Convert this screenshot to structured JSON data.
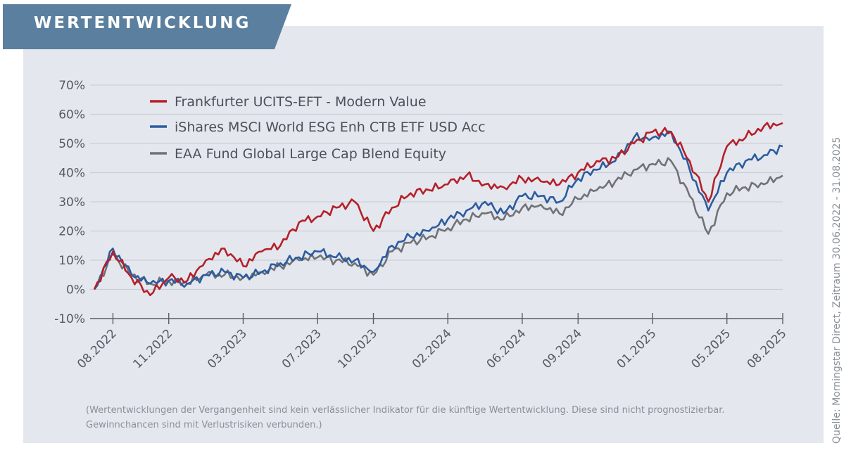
{
  "header": {
    "title": "WERTENTWICKLUNG",
    "banner_color": "#5b7f9e"
  },
  "chart_data": {
    "type": "line",
    "title": "",
    "xlabel": "",
    "ylabel": "",
    "ylim": [
      -10,
      70
    ],
    "yticks": [
      70,
      60,
      50,
      40,
      30,
      20,
      10,
      0,
      -10
    ],
    "ytick_labels": [
      "70%",
      "60%",
      "50%",
      "40%",
      "30%",
      "20%",
      "10%",
      "0%",
      "-10%"
    ],
    "xticks": [
      "08.2022",
      "11.2022",
      "03.2023",
      "07.2023",
      "10.2023",
      "02.2024",
      "06.2024",
      "09.2024",
      "01.2025",
      "05.2025",
      "08.2025"
    ],
    "grid": true,
    "legend_position": "top-left",
    "x": [
      "07.2022",
      "08.2022",
      "09.2022",
      "10.2022",
      "11.2022",
      "12.2022",
      "01.2023",
      "02.2023",
      "03.2023",
      "04.2023",
      "05.2023",
      "06.2023",
      "07.2023",
      "08.2023",
      "09.2023",
      "10.2023",
      "11.2023",
      "12.2023",
      "01.2024",
      "02.2024",
      "03.2024",
      "04.2024",
      "05.2024",
      "06.2024",
      "07.2024",
      "08.2024",
      "09.2024",
      "10.2024",
      "11.2024",
      "12.2024",
      "01.2025",
      "02.2025",
      "03.2025",
      "04.2025",
      "05.2025",
      "06.2025",
      "07.2025",
      "08.2025"
    ],
    "series": [
      {
        "name": "Frankfurter UCITS-EFT - Modern Value",
        "color": "#b5202a",
        "values": [
          0,
          13,
          4,
          -2,
          4,
          3,
          10,
          14,
          8,
          13,
          15,
          23,
          25,
          28,
          30,
          20,
          28,
          33,
          34,
          36,
          39,
          36,
          35,
          38,
          37,
          36,
          40,
          44,
          45,
          50,
          54,
          54,
          44,
          30,
          49,
          52,
          56,
          57
        ]
      },
      {
        "name": "iShares MSCI World ESG Enh CTB ETF USD Acc",
        "color": "#2c5c9e",
        "values": [
          0,
          14,
          5,
          2,
          3,
          2,
          5,
          6,
          4,
          6,
          9,
          11,
          13,
          11,
          10,
          6,
          15,
          18,
          20,
          24,
          27,
          30,
          26,
          32,
          32,
          30,
          38,
          41,
          44,
          52,
          52,
          54,
          41,
          27,
          40,
          44,
          46,
          49
        ]
      },
      {
        "name": "EAA Fund Global Large Cap Blend Equity",
        "color": "#707276",
        "values": [
          0,
          12,
          5,
          2,
          3,
          2,
          5,
          5,
          4,
          6,
          8,
          10,
          11,
          10,
          9,
          5,
          13,
          16,
          18,
          21,
          24,
          26,
          24,
          28,
          29,
          26,
          31,
          34,
          37,
          41,
          43,
          44,
          32,
          19,
          33,
          35,
          36,
          39
        ]
      }
    ]
  },
  "footer": {
    "disclaimer_line1": "(Wertentwicklungen der Vergangenheit sind kein verlässlicher Indikator für die künftige Wertentwicklung. Diese sind nicht prognostizierbar.",
    "disclaimer_line2": "Gewinnchancen sind mit Verlustrisiken verbunden.)",
    "source": "Quelle: Morningstar Direct, Zeitraum 30.06.2022 - 31.08.2025"
  }
}
